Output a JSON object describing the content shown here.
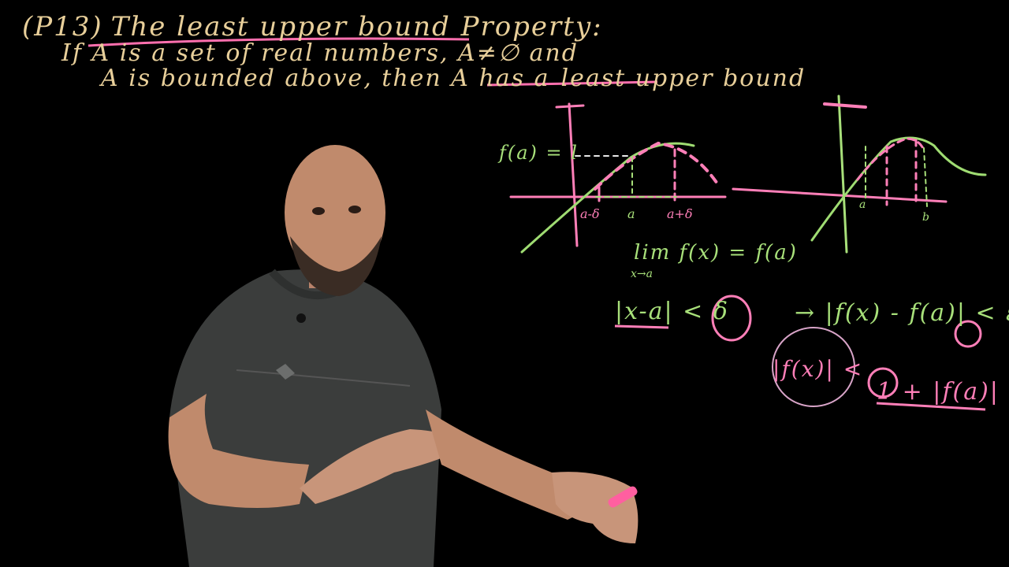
{
  "board": {
    "line1_label": "(P13)",
    "line1_title": "The least upper bound Property:",
    "line2": "If  A is a set of real numbers, A≠∅  and",
    "line3_main": "A is bounded above, then A has a",
    "line3_emph": "least upper bound"
  },
  "graph_left": {
    "fa_label": "f(a) = l",
    "tick_left": "a-δ",
    "tick_mid": "a",
    "tick_right": "a+δ"
  },
  "graph_right": {
    "tick_a": "a",
    "tick_b": "b"
  },
  "math": {
    "limit_expr": "lim f(x) = f(a)",
    "limit_sub": "x→a",
    "ineq_left": "|x-a| < δ",
    "ineq_right": "→ |f(x) - f(a)| < ε",
    "ineq_bottom_left": "|f(x)| <",
    "ineq_bottom_right": "1 + |f(a)|"
  },
  "colors": {
    "chalk_tan": "#e8cf9a",
    "chalk_pink": "#ff7fb8",
    "chalk_green": "#a8e07a",
    "shirt": "#3b3d3c",
    "skin": "#c08a6c"
  }
}
